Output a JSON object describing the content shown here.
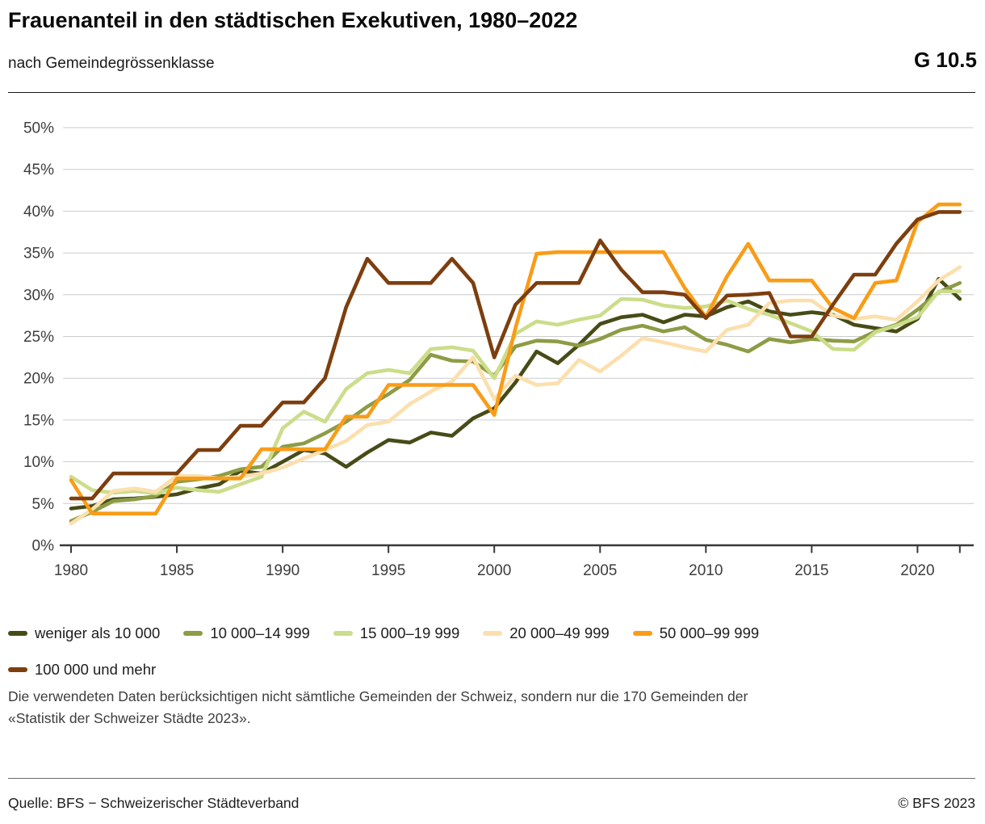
{
  "header": {
    "title": "Frauenanteil in den städtischen Exekutiven, 1980–2022",
    "subtitle": "nach Gemeindegrössenklasse",
    "figure_id": "G 10.5"
  },
  "chart_data": {
    "type": "line",
    "title": "Frauenanteil in den städtischen Exekutiven, 1980–2022",
    "subtitle": "nach Gemeindegrössenklasse",
    "xlabel": "",
    "ylabel": "",
    "ylim": [
      0,
      50
    ],
    "ytick_step": 5,
    "ytick_suffix": "%",
    "grid": "horizontal",
    "legend_position": "bottom",
    "x": [
      1980,
      1981,
      1982,
      1983,
      1984,
      1985,
      1986,
      1987,
      1988,
      1989,
      1990,
      1991,
      1992,
      1993,
      1994,
      1995,
      1996,
      1997,
      1998,
      1999,
      2000,
      2001,
      2002,
      2003,
      2004,
      2005,
      2006,
      2007,
      2008,
      2009,
      2010,
      2011,
      2012,
      2013,
      2014,
      2015,
      2016,
      2017,
      2018,
      2019,
      2020,
      2021,
      2022
    ],
    "x_tick_labels": [
      1980,
      1985,
      1990,
      1995,
      2000,
      2005,
      2010,
      2015,
      2020
    ],
    "end_tick_year": 2022,
    "series": [
      {
        "name": "weniger als 10 000",
        "color": "#474b17",
        "values": [
          4.4,
          4.7,
          5.5,
          5.6,
          5.8,
          6.1,
          6.8,
          7.3,
          8.9,
          8.6,
          10.0,
          11.4,
          11.0,
          9.4,
          11.1,
          12.6,
          12.3,
          13.5,
          13.1,
          15.2,
          16.4,
          19.5,
          23.2,
          21.8,
          24.0,
          26.5,
          27.3,
          27.6,
          26.7,
          27.6,
          27.4,
          28.5,
          29.2,
          28.0,
          27.6,
          27.9,
          27.6,
          26.4,
          26.0,
          25.6,
          27.1,
          31.9,
          29.5
        ]
      },
      {
        "name": "10 000–14 999",
        "color": "#8d9c45",
        "values": [
          2.9,
          4.0,
          5.3,
          5.5,
          5.9,
          7.6,
          7.9,
          8.3,
          9.1,
          9.4,
          11.8,
          12.2,
          13.4,
          14.8,
          16.6,
          18.1,
          19.8,
          22.8,
          22.1,
          22.0,
          20.3,
          23.8,
          24.5,
          24.4,
          23.9,
          24.7,
          25.8,
          26.3,
          25.6,
          26.1,
          24.6,
          24.0,
          23.2,
          24.7,
          24.3,
          24.7,
          24.5,
          24.4,
          25.6,
          26.4,
          28.2,
          30.3,
          31.4
        ]
      },
      {
        "name": "15 000–19 999",
        "color": "#cbdd8a",
        "values": [
          8.2,
          6.6,
          6.3,
          6.5,
          6.2,
          6.9,
          6.6,
          6.4,
          7.3,
          8.2,
          14.0,
          16.0,
          14.8,
          18.7,
          20.6,
          21.0,
          20.6,
          23.5,
          23.7,
          23.3,
          20.0,
          25.3,
          26.8,
          26.4,
          27.0,
          27.5,
          29.5,
          29.4,
          28.7,
          28.4,
          28.6,
          29.3,
          28.3,
          27.6,
          26.6,
          25.6,
          23.5,
          23.4,
          25.5,
          26.3,
          27.3,
          30.4,
          30.4
        ]
      },
      {
        "name": "20 000–49 999",
        "color": "#fbdfad",
        "values": [
          2.6,
          4.3,
          6.5,
          6.8,
          6.4,
          8.3,
          8.3,
          8.0,
          8.2,
          8.6,
          9.3,
          10.4,
          11.4,
          12.5,
          14.4,
          14.8,
          16.9,
          18.4,
          19.6,
          22.5,
          17.5,
          20.3,
          19.2,
          19.4,
          22.2,
          20.8,
          22.7,
          24.8,
          24.3,
          23.7,
          23.2,
          25.8,
          26.4,
          29.0,
          29.3,
          29.3,
          27.5,
          27.1,
          27.4,
          27.0,
          29.2,
          31.7,
          33.3
        ]
      },
      {
        "name": "50 000–99 999",
        "color": "#f99c17",
        "values": [
          7.8,
          3.8,
          3.8,
          3.8,
          3.8,
          8.0,
          8.0,
          8.0,
          8.0,
          11.5,
          11.5,
          11.5,
          11.5,
          15.4,
          15.4,
          19.2,
          19.2,
          19.2,
          19.2,
          19.2,
          15.6,
          26.0,
          34.9,
          35.1,
          35.1,
          35.1,
          35.1,
          35.1,
          35.1,
          30.8,
          27.3,
          32.2,
          36.1,
          31.7,
          31.7,
          31.7,
          28.4,
          27.2,
          31.4,
          31.7,
          38.7,
          40.8,
          40.8
        ]
      },
      {
        "name": "100 000 und mehr",
        "color": "#7d3e0e",
        "values": [
          5.6,
          5.6,
          8.6,
          8.6,
          8.6,
          8.6,
          11.4,
          11.4,
          14.3,
          14.3,
          17.1,
          17.1,
          20.0,
          28.5,
          34.3,
          31.4,
          31.4,
          31.4,
          34.3,
          31.4,
          22.5,
          28.8,
          31.4,
          31.4,
          31.4,
          36.5,
          33.0,
          30.3,
          30.3,
          30.0,
          27.2,
          29.9,
          30.0,
          30.2,
          25.0,
          25.0,
          28.8,
          32.4,
          32.4,
          36.1,
          39.0,
          39.9,
          39.9
        ]
      }
    ]
  },
  "note": {
    "line1": "Die verwendeten Daten berücksichtigen nicht sämtliche Gemeinden der Schweiz, sondern nur die 170 Gemeinden der",
    "line2": "«Statistik der Schweizer Städte 2023»."
  },
  "footer": {
    "source": "Quelle: BFS − Schweizerischer Städteverband",
    "copyright": "© BFS 2023"
  }
}
